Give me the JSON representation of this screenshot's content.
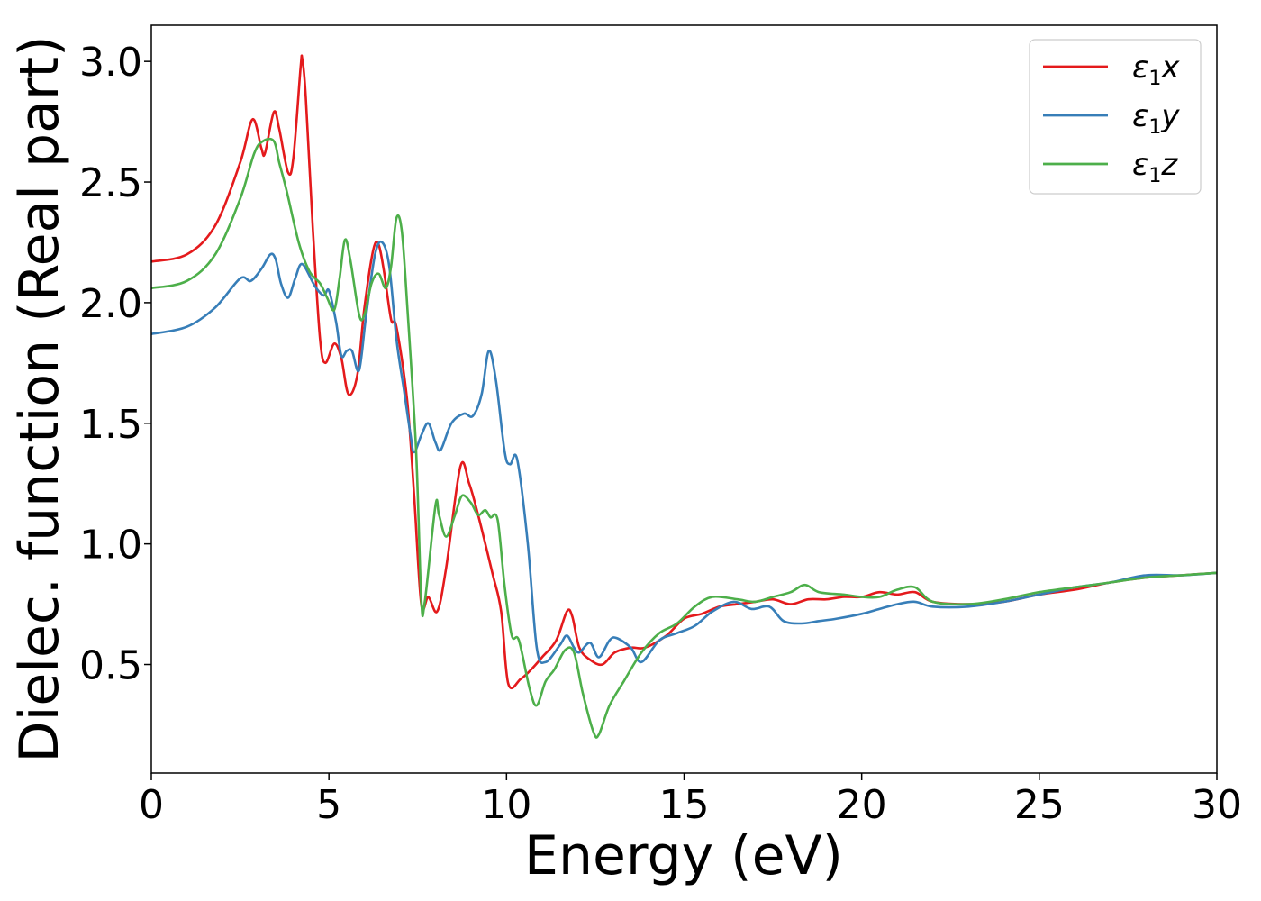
{
  "chart_data": {
    "type": "line",
    "xlabel": "Energy (eV)",
    "ylabel": "Dielec. function (Real part)",
    "xlim": [
      0,
      30
    ],
    "ylim": [
      0.05,
      3.15
    ],
    "xticks": [
      0,
      5,
      10,
      15,
      20,
      25,
      30
    ],
    "yticks": [
      0.5,
      1.0,
      1.5,
      2.0,
      2.5,
      3.0
    ],
    "xtick_labels": [
      "0",
      "5",
      "10",
      "15",
      "20",
      "25",
      "30"
    ],
    "ytick_labels": [
      "0.5",
      "1.0",
      "1.5",
      "2.0",
      "2.5",
      "3.0"
    ],
    "grid": false,
    "legend_position": "top-right",
    "series": [
      {
        "name": "ε1x",
        "legend_symbol": "ε",
        "legend_sub": "1",
        "legend_var": "x",
        "color": "#e41a1c",
        "points": [
          [
            0,
            2.17
          ],
          [
            1,
            2.2
          ],
          [
            1.8,
            2.32
          ],
          [
            2.5,
            2.58
          ],
          [
            2.85,
            2.76
          ],
          [
            3.1,
            2.64
          ],
          [
            3.2,
            2.62
          ],
          [
            3.45,
            2.79
          ],
          [
            3.6,
            2.72
          ],
          [
            3.85,
            2.54
          ],
          [
            4.0,
            2.6
          ],
          [
            4.2,
            2.97
          ],
          [
            4.25,
            3.01
          ],
          [
            4.35,
            2.85
          ],
          [
            4.55,
            2.3
          ],
          [
            4.75,
            1.85
          ],
          [
            4.9,
            1.75
          ],
          [
            5.15,
            1.83
          ],
          [
            5.35,
            1.77
          ],
          [
            5.55,
            1.62
          ],
          [
            5.8,
            1.7
          ],
          [
            6.0,
            1.98
          ],
          [
            6.25,
            2.22
          ],
          [
            6.4,
            2.24
          ],
          [
            6.55,
            2.13
          ],
          [
            6.75,
            1.93
          ],
          [
            6.9,
            1.9
          ],
          [
            7.2,
            1.6
          ],
          [
            7.4,
            1.2
          ],
          [
            7.6,
            0.75
          ],
          [
            7.8,
            0.78
          ],
          [
            8.05,
            0.72
          ],
          [
            8.3,
            0.9
          ],
          [
            8.7,
            1.32
          ],
          [
            8.95,
            1.25
          ],
          [
            9.2,
            1.12
          ],
          [
            9.6,
            0.88
          ],
          [
            9.85,
            0.72
          ],
          [
            10.05,
            0.42
          ],
          [
            10.4,
            0.44
          ],
          [
            10.7,
            0.48
          ],
          [
            11.0,
            0.53
          ],
          [
            11.4,
            0.6
          ],
          [
            11.7,
            0.72
          ],
          [
            11.85,
            0.7
          ],
          [
            12.05,
            0.57
          ],
          [
            12.35,
            0.52
          ],
          [
            12.7,
            0.5
          ],
          [
            13.05,
            0.55
          ],
          [
            13.5,
            0.57
          ],
          [
            13.9,
            0.57
          ],
          [
            14.5,
            0.62
          ],
          [
            15.0,
            0.69
          ],
          [
            15.5,
            0.71
          ],
          [
            16.0,
            0.74
          ],
          [
            16.5,
            0.75
          ],
          [
            17.0,
            0.76
          ],
          [
            17.5,
            0.77
          ],
          [
            18.0,
            0.75
          ],
          [
            18.5,
            0.77
          ],
          [
            19.0,
            0.77
          ],
          [
            19.5,
            0.78
          ],
          [
            20.0,
            0.78
          ],
          [
            20.5,
            0.8
          ],
          [
            21.0,
            0.79
          ],
          [
            21.5,
            0.8
          ],
          [
            22.0,
            0.76
          ],
          [
            23.0,
            0.75
          ],
          [
            24.0,
            0.76
          ],
          [
            25.0,
            0.79
          ],
          [
            26.0,
            0.81
          ],
          [
            27.0,
            0.84
          ],
          [
            28.0,
            0.86
          ],
          [
            29.0,
            0.87
          ],
          [
            30,
            0.88
          ]
        ]
      },
      {
        "name": "ε1y",
        "legend_symbol": "ε",
        "legend_sub": "1",
        "legend_var": "y",
        "color": "#377eb8",
        "points": [
          [
            0,
            1.87
          ],
          [
            1,
            1.9
          ],
          [
            1.8,
            1.98
          ],
          [
            2.5,
            2.1
          ],
          [
            2.8,
            2.09
          ],
          [
            3.1,
            2.14
          ],
          [
            3.35,
            2.2
          ],
          [
            3.5,
            2.18
          ],
          [
            3.65,
            2.08
          ],
          [
            3.85,
            2.02
          ],
          [
            4.05,
            2.1
          ],
          [
            4.25,
            2.16
          ],
          [
            4.6,
            2.07
          ],
          [
            4.85,
            2.03
          ],
          [
            5.0,
            2.05
          ],
          [
            5.2,
            1.92
          ],
          [
            5.35,
            1.78
          ],
          [
            5.5,
            1.8
          ],
          [
            5.65,
            1.8
          ],
          [
            5.85,
            1.72
          ],
          [
            6.05,
            1.95
          ],
          [
            6.3,
            2.2
          ],
          [
            6.5,
            2.25
          ],
          [
            6.7,
            2.15
          ],
          [
            6.9,
            1.85
          ],
          [
            7.1,
            1.65
          ],
          [
            7.3,
            1.45
          ],
          [
            7.4,
            1.38
          ],
          [
            7.6,
            1.45
          ],
          [
            7.8,
            1.5
          ],
          [
            8.0,
            1.42
          ],
          [
            8.15,
            1.39
          ],
          [
            8.45,
            1.5
          ],
          [
            8.8,
            1.54
          ],
          [
            9.05,
            1.53
          ],
          [
            9.3,
            1.62
          ],
          [
            9.5,
            1.8
          ],
          [
            9.7,
            1.68
          ],
          [
            9.95,
            1.38
          ],
          [
            10.1,
            1.33
          ],
          [
            10.3,
            1.35
          ],
          [
            10.6,
            1.0
          ],
          [
            10.85,
            0.57
          ],
          [
            11.1,
            0.51
          ],
          [
            11.5,
            0.58
          ],
          [
            11.7,
            0.62
          ],
          [
            11.9,
            0.57
          ],
          [
            12.05,
            0.55
          ],
          [
            12.35,
            0.59
          ],
          [
            12.6,
            0.53
          ],
          [
            12.9,
            0.6
          ],
          [
            13.1,
            0.61
          ],
          [
            13.5,
            0.57
          ],
          [
            13.8,
            0.51
          ],
          [
            14.3,
            0.6
          ],
          [
            14.8,
            0.63
          ],
          [
            15.3,
            0.66
          ],
          [
            15.8,
            0.72
          ],
          [
            16.4,
            0.76
          ],
          [
            16.9,
            0.73
          ],
          [
            17.4,
            0.74
          ],
          [
            17.8,
            0.68
          ],
          [
            18.3,
            0.67
          ],
          [
            18.8,
            0.68
          ],
          [
            19.3,
            0.69
          ],
          [
            20.0,
            0.71
          ],
          [
            20.5,
            0.73
          ],
          [
            21.0,
            0.75
          ],
          [
            21.5,
            0.76
          ],
          [
            22.0,
            0.74
          ],
          [
            23.0,
            0.74
          ],
          [
            24.0,
            0.76
          ],
          [
            25.0,
            0.79
          ],
          [
            26.0,
            0.82
          ],
          [
            27.0,
            0.84
          ],
          [
            28.0,
            0.87
          ],
          [
            29.0,
            0.87
          ],
          [
            30,
            0.88
          ]
        ]
      },
      {
        "name": "ε1z",
        "legend_symbol": "ε",
        "legend_sub": "1",
        "legend_var": "z",
        "color": "#4daf4a",
        "points": [
          [
            0,
            2.06
          ],
          [
            1,
            2.09
          ],
          [
            1.8,
            2.2
          ],
          [
            2.5,
            2.43
          ],
          [
            2.9,
            2.62
          ],
          [
            3.15,
            2.67
          ],
          [
            3.45,
            2.67
          ],
          [
            3.6,
            2.58
          ],
          [
            3.8,
            2.47
          ],
          [
            4.15,
            2.25
          ],
          [
            4.45,
            2.13
          ],
          [
            4.75,
            2.08
          ],
          [
            4.95,
            2.02
          ],
          [
            5.15,
            1.97
          ],
          [
            5.3,
            2.1
          ],
          [
            5.45,
            2.26
          ],
          [
            5.6,
            2.18
          ],
          [
            5.85,
            1.95
          ],
          [
            6.0,
            1.95
          ],
          [
            6.2,
            2.08
          ],
          [
            6.4,
            2.12
          ],
          [
            6.6,
            2.06
          ],
          [
            6.75,
            2.15
          ],
          [
            6.9,
            2.35
          ],
          [
            7.05,
            2.3
          ],
          [
            7.2,
            2.0
          ],
          [
            7.45,
            1.4
          ],
          [
            7.6,
            0.77
          ],
          [
            7.7,
            0.76
          ],
          [
            8.0,
            1.16
          ],
          [
            8.1,
            1.12
          ],
          [
            8.3,
            1.03
          ],
          [
            8.55,
            1.12
          ],
          [
            8.75,
            1.2
          ],
          [
            9.0,
            1.17
          ],
          [
            9.2,
            1.12
          ],
          [
            9.4,
            1.14
          ],
          [
            9.55,
            1.11
          ],
          [
            9.75,
            1.1
          ],
          [
            9.95,
            0.82
          ],
          [
            10.15,
            0.62
          ],
          [
            10.35,
            0.6
          ],
          [
            10.65,
            0.4
          ],
          [
            10.85,
            0.33
          ],
          [
            11.1,
            0.43
          ],
          [
            11.35,
            0.48
          ],
          [
            11.65,
            0.56
          ],
          [
            11.9,
            0.55
          ],
          [
            12.15,
            0.38
          ],
          [
            12.45,
            0.22
          ],
          [
            12.6,
            0.21
          ],
          [
            12.9,
            0.33
          ],
          [
            13.3,
            0.43
          ],
          [
            13.8,
            0.55
          ],
          [
            14.3,
            0.63
          ],
          [
            14.8,
            0.67
          ],
          [
            15.3,
            0.74
          ],
          [
            15.8,
            0.78
          ],
          [
            16.5,
            0.77
          ],
          [
            17.0,
            0.76
          ],
          [
            17.5,
            0.78
          ],
          [
            18.0,
            0.8
          ],
          [
            18.4,
            0.83
          ],
          [
            18.8,
            0.8
          ],
          [
            19.5,
            0.79
          ],
          [
            20.0,
            0.78
          ],
          [
            20.5,
            0.78
          ],
          [
            21.0,
            0.81
          ],
          [
            21.5,
            0.82
          ],
          [
            22.0,
            0.76
          ],
          [
            23.0,
            0.75
          ],
          [
            24.0,
            0.77
          ],
          [
            25.0,
            0.8
          ],
          [
            26.0,
            0.82
          ],
          [
            27.0,
            0.84
          ],
          [
            28.0,
            0.86
          ],
          [
            29.0,
            0.87
          ],
          [
            30,
            0.88
          ]
        ]
      }
    ]
  }
}
